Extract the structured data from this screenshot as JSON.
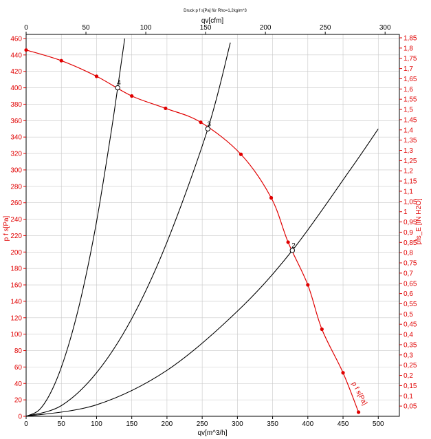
{
  "chart_data": {
    "type": "line",
    "title": "Druck p f s[Pa] für Rho=1,2kg/m^3",
    "xlabel": "qv[m^3/h]",
    "x2label": "qv[cfm]",
    "ylabel": "p f s[Pa]",
    "y2label": "pfs_E [IN H2O]",
    "xlim": [
      0,
      530
    ],
    "ylim": [
      0,
      465
    ],
    "x_ticks": [
      "0",
      "50",
      "100",
      "150",
      "200",
      "250",
      "300",
      "350",
      "400",
      "450",
      "500"
    ],
    "x2_ticks": [
      "0",
      "50",
      "100",
      "150",
      "200",
      "250",
      "300"
    ],
    "y_ticks": [
      "0",
      "20",
      "40",
      "60",
      "80",
      "100",
      "120",
      "140",
      "160",
      "180",
      "200",
      "220",
      "240",
      "260",
      "280",
      "300",
      "320",
      "340",
      "360",
      "380",
      "400",
      "420",
      "440",
      "460"
    ],
    "y2_ticks": [
      "0,05",
      "0,1",
      "0,15",
      "0,2",
      "0,25",
      "0,3",
      "0,35",
      "0,4",
      "0,45",
      "0,5",
      "0,55",
      "0,6",
      "0,65",
      "0,7",
      "0,75",
      "0,8",
      "0,85",
      "0,9",
      "0,95",
      "1",
      "1,05",
      "1,1",
      "1,15",
      "1,2",
      "1,25",
      "1,3",
      "1,35",
      "1,4",
      "1,45",
      "1,5",
      "1,55",
      "1,6",
      "1,65",
      "1,7",
      "1,75",
      "1,8",
      "1,85"
    ],
    "grid": true,
    "fan_curve": {
      "name": "p f s[Pa]",
      "color": "#e00000",
      "x": [
        0,
        50,
        100,
        150,
        198,
        248,
        305,
        348,
        372,
        400,
        420,
        450,
        472
      ],
      "y": [
        446,
        433,
        414,
        390,
        375,
        358,
        319,
        266,
        212,
        160,
        106,
        53,
        5
      ],
      "markers": true
    },
    "system_curves": [
      {
        "label": "4",
        "color": "#000000",
        "x": [
          0,
          20,
          40,
          60,
          80,
          100,
          120,
          130,
          140
        ],
        "y": [
          0,
          9,
          38,
          86,
          152,
          237,
          342,
          400,
          460
        ]
      },
      {
        "label": "3",
        "color": "#000000",
        "x": [
          0,
          50,
          100,
          150,
          200,
          258,
          290
        ],
        "y": [
          0,
          13,
          53,
          119,
          212,
          350,
          455
        ]
      },
      {
        "label": "2",
        "color": "#000000",
        "x": [
          0,
          100,
          200,
          300,
          378,
          460,
          500
        ],
        "y": [
          0,
          14,
          56,
          128,
          202,
          300,
          350
        ]
      }
    ],
    "operating_points": [
      {
        "label": "4",
        "x": 130,
        "y": 400
      },
      {
        "label": "3",
        "x": 258,
        "y": 350
      },
      {
        "label": "2",
        "x": 378,
        "y": 202
      }
    ]
  }
}
